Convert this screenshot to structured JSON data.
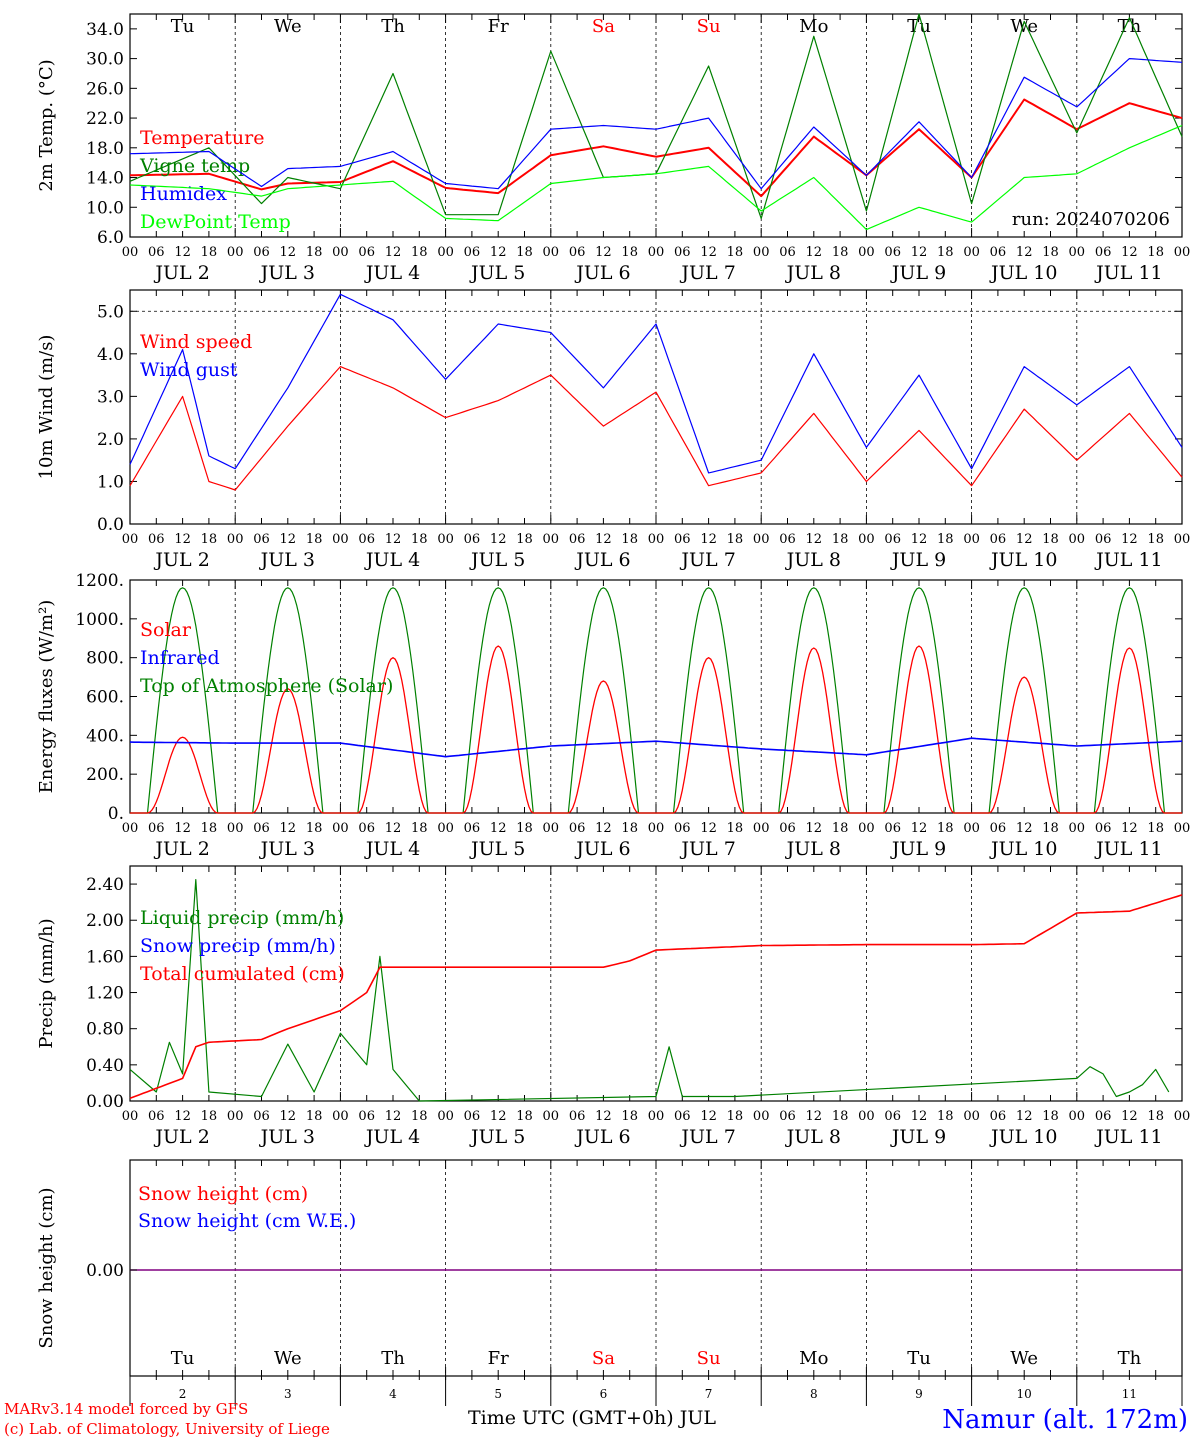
{
  "colors": {
    "red": "#ff0000",
    "green": "#008000",
    "blue": "#0000ff",
    "lime": "#00ff00",
    "purple": "#800080",
    "black": "#000000"
  },
  "days": [
    "Tu",
    "We",
    "Th",
    "Fr",
    "Sa",
    "Su",
    "Mo",
    "Tu",
    "We",
    "Th"
  ],
  "weekend_flags": [
    false,
    false,
    false,
    false,
    true,
    true,
    false,
    false,
    false,
    false
  ],
  "hour_labels": [
    "00",
    "06",
    "12",
    "18"
  ],
  "date_labels": [
    "JUL  2",
    "JUL  3",
    "JUL  4",
    "JUL  5",
    "JUL  6",
    "JUL  7",
    "JUL  8",
    "JUL  9",
    "JUL 10",
    "JUL 11"
  ],
  "final_hour_label": "00",
  "bottom_day_numbers": [
    "2",
    "3",
    "4",
    "5",
    "6",
    "7",
    "8",
    "9",
    "10",
    "11"
  ],
  "run_label": "run: 2024070206",
  "xaxis_title": "Time UTC (GMT+0h) JUL",
  "credit_line1": "MARv3.14 model forced by GFS",
  "credit_line2": "(c) Lab. of Climatology, University of Liege",
  "station_label": "Namur (alt. 172m)",
  "chart_data": [
    {
      "type": "line",
      "ylabel": "2m Temp. (°C)",
      "ylim": [
        6.0,
        36.0
      ],
      "yticks": [
        "6.0",
        "10.0",
        "14.0",
        "18.0",
        "22.0",
        "26.0",
        "30.0",
        "34.0"
      ],
      "ytick_values": [
        6,
        10,
        14,
        18,
        22,
        26,
        30,
        34
      ],
      "x_hours": [
        0,
        18,
        30,
        36,
        48,
        60,
        72,
        84,
        96,
        108,
        120,
        132,
        144,
        156,
        168,
        180,
        192,
        204,
        216,
        228,
        240
      ],
      "series": [
        {
          "name": "Temperature",
          "color": "red",
          "values": [
            14.3,
            14.5,
            12.4,
            13.2,
            13.4,
            16.2,
            12.6,
            11.9,
            17.0,
            18.2,
            16.8,
            18.0,
            11.5,
            19.5,
            14.3,
            20.5,
            14.0,
            24.5,
            20.5,
            24.0,
            22.0
          ]
        },
        {
          "name": "Vigne temp",
          "color": "green",
          "values": [
            13.5,
            18.0,
            10.5,
            14.0,
            12.5,
            28.0,
            9.0,
            9.0,
            31.0,
            14.0,
            14.5,
            29.0,
            8.5,
            33.0,
            9.5,
            36.0,
            10.5,
            35.0,
            20.0,
            35.5,
            19.5
          ]
        },
        {
          "name": "Humidex",
          "color": "blue",
          "values": [
            17.2,
            17.5,
            12.8,
            15.2,
            15.5,
            17.5,
            13.2,
            12.5,
            20.5,
            21.0,
            20.5,
            22.0,
            12.5,
            20.8,
            14.3,
            21.5,
            14.0,
            27.5,
            23.5,
            30.0,
            29.5
          ]
        },
        {
          "name": "DewPoint Temp",
          "color": "lime",
          "values": [
            13.0,
            12.5,
            11.5,
            12.5,
            13.0,
            13.5,
            8.5,
            8.2,
            13.2,
            14.0,
            14.5,
            15.5,
            9.5,
            14.0,
            7.0,
            10.0,
            8.0,
            14.0,
            14.5,
            18.0,
            21.0
          ]
        }
      ],
      "annotation": "run: 2024070206"
    },
    {
      "type": "line",
      "ylabel": "10m Wind (m/s)",
      "ylim": [
        0.0,
        5.5
      ],
      "yticks": [
        "0.0",
        "1.0",
        "2.0",
        "3.0",
        "4.0",
        "5.0"
      ],
      "ytick_values": [
        0,
        1,
        2,
        3,
        4,
        5
      ],
      "reference_line": 5.0,
      "x_hours": [
        0,
        12,
        18,
        24,
        36,
        48,
        60,
        72,
        84,
        96,
        108,
        120,
        132,
        144,
        156,
        168,
        180,
        192,
        204,
        216,
        228,
        240
      ],
      "series": [
        {
          "name": "Wind speed",
          "color": "red",
          "values": [
            0.9,
            3.0,
            1.0,
            0.8,
            2.3,
            3.7,
            3.2,
            2.5,
            2.9,
            3.5,
            2.3,
            3.1,
            0.9,
            1.2,
            2.6,
            1.0,
            2.2,
            0.9,
            2.7,
            1.5,
            2.6,
            1.1
          ]
        },
        {
          "name": "Wind gust",
          "color": "blue",
          "values": [
            1.4,
            4.1,
            1.6,
            1.3,
            3.2,
            5.4,
            4.8,
            3.4,
            4.7,
            4.5,
            3.2,
            4.7,
            1.2,
            1.5,
            4.0,
            1.8,
            3.5,
            1.3,
            3.7,
            2.8,
            3.7,
            1.8
          ]
        }
      ]
    },
    {
      "type": "line",
      "ylabel": "Energy fluxes (W/m²)",
      "ylim": [
        0,
        1200
      ],
      "yticks": [
        "0.",
        "200.",
        "400.",
        "600.",
        "800.",
        "1000.",
        "1200."
      ],
      "ytick_values": [
        0,
        200,
        400,
        600,
        800,
        1000,
        1200
      ],
      "solar_daily_peaks": [
        390,
        640,
        800,
        860,
        680,
        800,
        850,
        860,
        700,
        850
      ],
      "series": [
        {
          "name": "Solar",
          "color": "red",
          "values": [
            0,
            390,
            0,
            640,
            0,
            800,
            0,
            860,
            0,
            680,
            0,
            800,
            0,
            850,
            0,
            860,
            0,
            700,
            0,
            850,
            0
          ]
        },
        {
          "name": "Infrared",
          "color": "blue",
          "x_hours": [
            0,
            24,
            48,
            72,
            96,
            120,
            144,
            168,
            192,
            216,
            240
          ],
          "values": [
            365,
            360,
            360,
            290,
            345,
            370,
            330,
            300,
            385,
            345,
            370
          ]
        },
        {
          "name": "Top of Atmosphere (Solar)",
          "color": "green",
          "daily_peak": 1160,
          "sunrise_hour": 4,
          "sunset_hour": 20
        }
      ]
    },
    {
      "type": "line",
      "ylabel": "Precip (mm/h)",
      "ylim": [
        0.0,
        2.6
      ],
      "yticks": [
        "0.00",
        "0.40",
        "0.80",
        "1.20",
        "1.60",
        "2.00",
        "2.40"
      ],
      "ytick_values": [
        0,
        0.4,
        0.8,
        1.2,
        1.6,
        2.0,
        2.4
      ],
      "series": [
        {
          "name": "Liquid precip (mm/h)",
          "color": "green",
          "x_hours": [
            0,
            6,
            9,
            12,
            15,
            18,
            30,
            36,
            42,
            48,
            54,
            57,
            60,
            66,
            120,
            123,
            126,
            138,
            216,
            219,
            222,
            225,
            228,
            231,
            234,
            237
          ],
          "values": [
            0.35,
            0.1,
            0.65,
            0.3,
            2.45,
            0.1,
            0.05,
            0.63,
            0.1,
            0.75,
            0.4,
            1.6,
            0.35,
            0.0,
            0.05,
            0.6,
            0.05,
            0.05,
            0.25,
            0.38,
            0.3,
            0.05,
            0.1,
            0.18,
            0.35,
            0.1
          ]
        },
        {
          "name": "Snow precip (mm/h)",
          "color": "blue",
          "values": [
            0,
            0
          ]
        },
        {
          "name": "Total cumulated (cm)",
          "color": "red",
          "x_hours": [
            0,
            12,
            15,
            18,
            30,
            36,
            42,
            48,
            54,
            57,
            60,
            108,
            114,
            120,
            144,
            168,
            192,
            204,
            216,
            228,
            240
          ],
          "values": [
            0.03,
            0.25,
            0.6,
            0.65,
            0.68,
            0.8,
            0.9,
            1.0,
            1.2,
            1.48,
            1.48,
            1.48,
            1.55,
            1.67,
            1.72,
            1.73,
            1.73,
            1.74,
            2.08,
            2.1,
            2.28
          ]
        }
      ]
    },
    {
      "type": "line",
      "ylabel": "Snow height (cm)",
      "yticks": [
        "0.00"
      ],
      "ytick_values": [
        0
      ],
      "series": [
        {
          "name": "Snow height (cm)",
          "color": "red",
          "values": [
            0,
            0
          ]
        },
        {
          "name": "Snow height (cm W.E.)",
          "color": "blue",
          "values": [
            0,
            0
          ]
        }
      ]
    }
  ]
}
